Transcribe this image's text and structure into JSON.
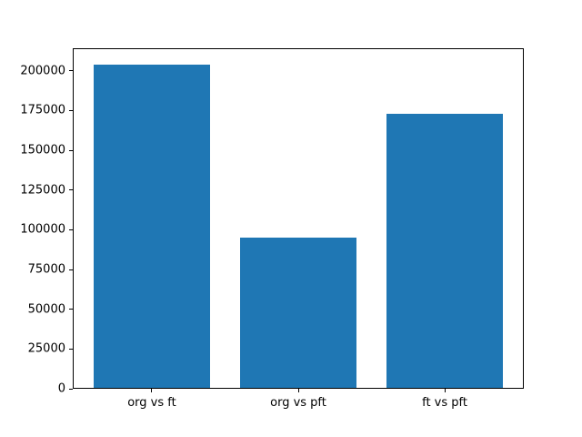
{
  "chart_data": {
    "type": "bar",
    "title": "",
    "xlabel": "",
    "ylabel": "",
    "categories": [
      "org vs ft",
      "org vs pft",
      "ft vs pft"
    ],
    "values": [
      204000,
      95000,
      173000
    ],
    "yticks": [
      0,
      25000,
      50000,
      75000,
      100000,
      125000,
      150000,
      175000,
      200000
    ],
    "ylim": [
      0,
      214200
    ],
    "bar_color": "#1f77b4",
    "background_color": "#ffffff",
    "axis_color": "#000000",
    "grid": false,
    "legend": null,
    "bar_width_fraction": 0.8
  }
}
